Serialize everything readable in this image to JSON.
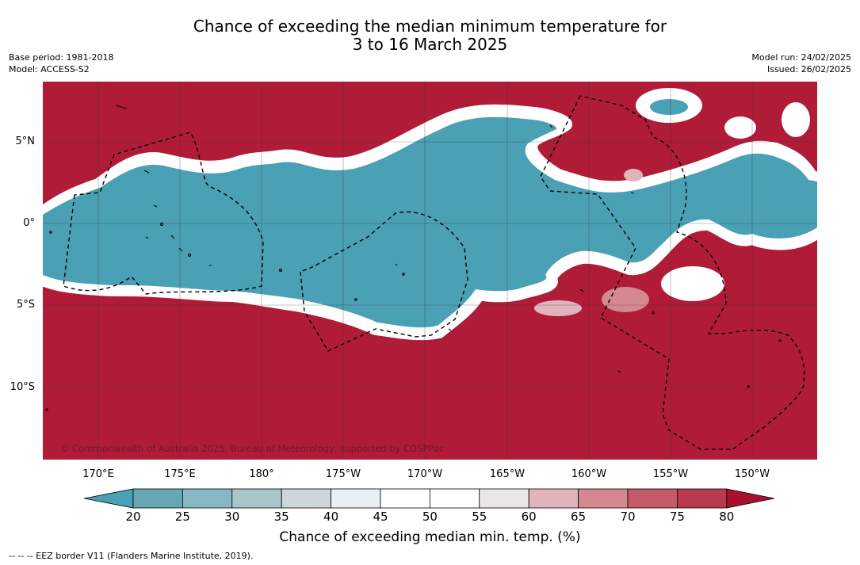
{
  "header": {
    "title_line1": "Chance of exceeding the median minimum temperature for",
    "title_line2": "3 to 16 March 2025",
    "base_period": "Base period: 1981-2018",
    "model": "Model: ACCESS-S2",
    "model_run": "Model run: 24/02/2025",
    "issued": "Issued: 26/02/2025"
  },
  "map": {
    "latitude_ticks": [
      "5°N",
      "0°",
      "5°S",
      "10°S"
    ],
    "longitude_ticks": [
      "170°E",
      "175°E",
      "180°",
      "175°W",
      "170°W",
      "165°W",
      "160°W",
      "155°W",
      "150°W"
    ],
    "copyright": "© Commonwealth of Australia 2025, Bureau of Meteorology, supported by COSPPac",
    "colors": {
      "high_chance": "#b01c38",
      "low_chance": "#4aa0b4",
      "neutral": "#ffffff"
    },
    "eez_note": "--  --  -- EEZ border V11 (Flanders Marine Institute, 2019)."
  },
  "colorbar": {
    "label": "Chance of exceeding median min. temp. (%)",
    "ticks": [
      "20",
      "25",
      "30",
      "35",
      "40",
      "45",
      "50",
      "55",
      "60",
      "65",
      "70",
      "75",
      "80"
    ],
    "colors": [
      "#4aa0b4",
      "#67a7b3",
      "#87b7c2",
      "#aac6cb",
      "#cdd7d9",
      "#e9eff2",
      "#ffffff",
      "#ffffff",
      "#e8e6e7",
      "#e0b4ba",
      "#d48890",
      "#c45a6a",
      "#b83a4e",
      "#a8102e"
    ]
  }
}
